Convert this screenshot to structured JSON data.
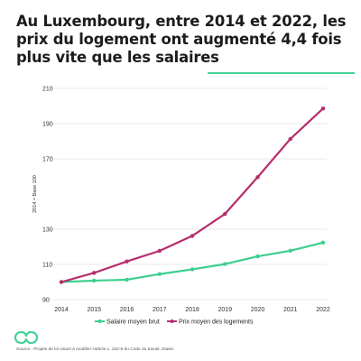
{
  "title": "Au Luxembourg, entre 2014 et 2022, les prix du logement ont augmenté 4,4 fois plus vite que les salaires",
  "source": "Source : Projets de loi visant à modifier l'article L. 222-9 du Code du travail, Statec",
  "colors": {
    "accent": "#43d39a",
    "salaire": "#3ccf8e",
    "prix": "#b62d6b"
  },
  "chart_data": {
    "type": "line",
    "x": [
      2014,
      2015,
      2016,
      2017,
      2018,
      2019,
      2020,
      2021,
      2022
    ],
    "x_tick_labels": [
      "2014",
      "2015",
      "2016",
      "2017",
      "2018",
      "2019",
      "2020",
      "2021",
      "2022"
    ],
    "y_ticks": [
      90,
      110,
      130,
      170,
      190,
      210
    ],
    "y_tick_labels": [
      "90",
      "110",
      "130",
      "170",
      "190",
      "210"
    ],
    "ylim": [
      90,
      210
    ],
    "ylabel": "2014 = Base 100",
    "xlabel": "",
    "grid": true,
    "legend_position": "bottom",
    "series": [
      {
        "name": "Salaire moyen brut",
        "color": "#3ccf8e",
        "values": [
          100,
          100.8,
          101.3,
          104.5,
          107.2,
          110.2,
          114.6,
          117.8,
          122.4
        ]
      },
      {
        "name": "Prix moyen des logements",
        "color": "#b62d6b",
        "values": [
          100,
          105.2,
          111.7,
          117.7,
          126.2,
          138.7,
          159.6,
          181.3,
          198.6
        ]
      }
    ]
  }
}
